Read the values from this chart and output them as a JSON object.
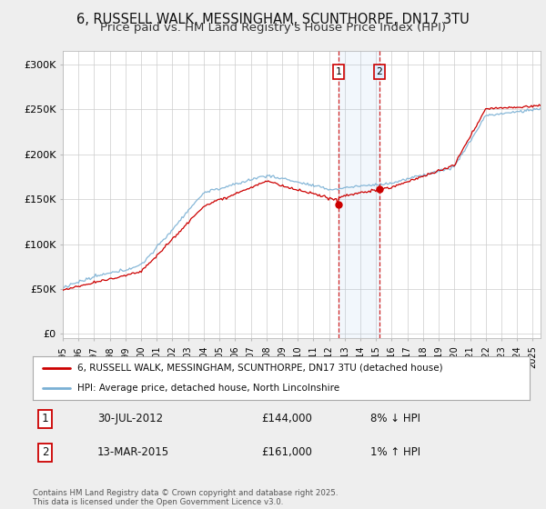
{
  "title": "6, RUSSELL WALK, MESSINGHAM, SCUNTHORPE, DN17 3TU",
  "subtitle": "Price paid vs. HM Land Registry's House Price Index (HPI)",
  "title_fontsize": 10.5,
  "subtitle_fontsize": 9.5,
  "ylabel_ticks": [
    "£0",
    "£50K",
    "£100K",
    "£150K",
    "£200K",
    "£250K",
    "£300K"
  ],
  "ytick_vals": [
    0,
    50000,
    100000,
    150000,
    200000,
    250000,
    300000
  ],
  "ylim": [
    -5000,
    315000
  ],
  "background_color": "#eeeeee",
  "plot_bg_color": "#ffffff",
  "line1_color": "#cc0000",
  "line2_color": "#7ab0d4",
  "sale1_year": 2012.583,
  "sale1_price": 144000,
  "sale2_year": 2015.208,
  "sale2_price": 161000,
  "legend1": "6, RUSSELL WALK, MESSINGHAM, SCUNTHORPE, DN17 3TU (detached house)",
  "legend2": "HPI: Average price, detached house, North Lincolnshire",
  "footer": "Contains HM Land Registry data © Crown copyright and database right 2025.\nThis data is licensed under the Open Government Licence v3.0.",
  "xlim_start": 1995.0,
  "xlim_end": 2025.5
}
